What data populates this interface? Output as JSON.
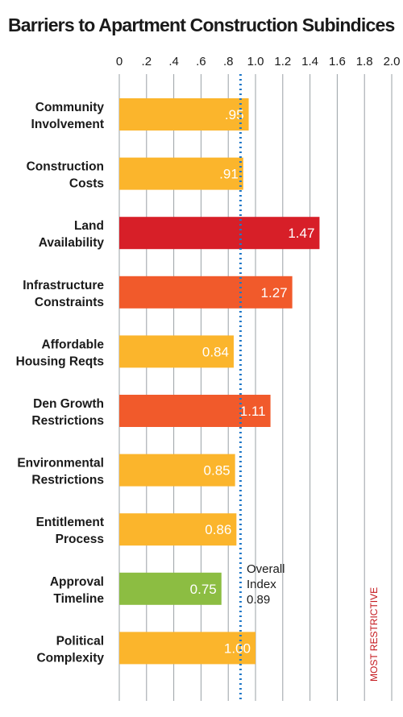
{
  "chart_data": {
    "type": "bar",
    "orientation": "horizontal",
    "title": "Barriers to Apartment Construction Subindices",
    "categories": [
      [
        "Community",
        "Involvement"
      ],
      [
        "Construction",
        "Costs"
      ],
      [
        "Land",
        "Availability"
      ],
      [
        "Infrastructure",
        "Constraints"
      ],
      [
        "Affordable",
        "Housing Reqts"
      ],
      [
        "Den Growth",
        "Restrictions"
      ],
      [
        "Environmental",
        "Restrictions"
      ],
      [
        "Entitlement",
        "Process"
      ],
      [
        "Approval",
        "Timeline"
      ],
      [
        "Political",
        "Complexity"
      ]
    ],
    "values": [
      0.95,
      0.91,
      1.47,
      1.27,
      0.84,
      1.11,
      0.85,
      0.86,
      0.75,
      1.0
    ],
    "value_labels": [
      ".95",
      ".91",
      "1.47",
      "1.27",
      "0.84",
      "1.11",
      "0.85",
      "0.86",
      "0.75",
      "1.00"
    ],
    "bar_colors": [
      "#fbb52c",
      "#fbb52c",
      "#d71f28",
      "#f15a2b",
      "#fbb52c",
      "#f15a2b",
      "#fbb52c",
      "#fbb52c",
      "#8cbd42",
      "#fbb52c"
    ],
    "x_ticks": [
      0,
      0.2,
      0.4,
      0.6,
      0.8,
      1.0,
      1.2,
      1.4,
      1.6,
      1.8,
      2.0
    ],
    "x_tick_labels": [
      "0",
      ".2",
      ".4",
      ".6",
      ".8",
      "1.0",
      "1.2",
      "1.4",
      "1.6",
      "1.8",
      "2.0"
    ],
    "xlim": [
      0,
      2.0
    ],
    "grid": true,
    "reference_line": {
      "value": 0.89,
      "label_lines": [
        "Overall",
        "Index",
        "0.89"
      ],
      "color": "#1f78c8"
    },
    "axis_note": "MOST RESTRICTIVE",
    "axis_note_color": "#c4171c"
  }
}
